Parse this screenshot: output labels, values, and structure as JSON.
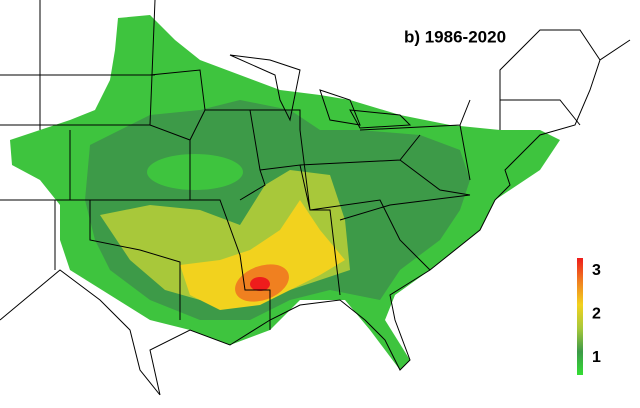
{
  "title": "b) 1986-2020",
  "colorbar": {
    "lim": [
      0.6,
      3.3
    ],
    "ticks": [
      1,
      2,
      3
    ],
    "colors": [
      "#33dd33",
      "#3d9a48",
      "#a8c83a",
      "#f2d21e",
      "#f08020",
      "#ee1c1c"
    ]
  }
}
